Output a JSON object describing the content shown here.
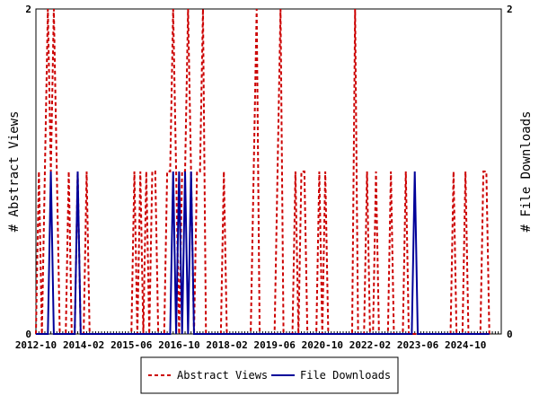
{
  "chart_data": {
    "type": "line",
    "title": "",
    "xlabel": "",
    "ylabel_left": "# Abstract Views",
    "ylabel_right": "# File Downloads",
    "ylim_left": [
      0,
      2
    ],
    "ylim_right": [
      0,
      2
    ],
    "y_ticks_left": [
      "0",
      "2"
    ],
    "y_ticks_right": [
      "0",
      "2"
    ],
    "x_range": [
      "2012-10",
      "2025-10"
    ],
    "x_ticks": [
      "2012-10",
      "2014-02",
      "2015-06",
      "2016-10",
      "2018-02",
      "2019-06",
      "2020-10",
      "2022-02",
      "2023-06",
      "2024-10"
    ],
    "grid": false,
    "legend_position": "bottom",
    "series": [
      {
        "name": "Abstract Views",
        "color": "#cc0000",
        "style": "dashed",
        "axis": "left",
        "points": [
          [
            "2012-10",
            0
          ],
          [
            "2012-11",
            1
          ],
          [
            "2012-12",
            0
          ],
          [
            "2013-01",
            1
          ],
          [
            "2013-02",
            2
          ],
          [
            "2013-03",
            1
          ],
          [
            "2013-04",
            2
          ],
          [
            "2013-05",
            1
          ],
          [
            "2013-06",
            0
          ],
          [
            "2013-07",
            0
          ],
          [
            "2013-08",
            0
          ],
          [
            "2013-09",
            1
          ],
          [
            "2013-10",
            0
          ],
          [
            "2013-11",
            0
          ],
          [
            "2013-12",
            1
          ],
          [
            "2014-01",
            0
          ],
          [
            "2014-02",
            0
          ],
          [
            "2014-03",
            1
          ],
          [
            "2014-04",
            0
          ],
          [
            "2014-05",
            0
          ],
          [
            "2014-06",
            0
          ],
          [
            "2014-07",
            0
          ],
          [
            "2014-08",
            0
          ],
          [
            "2014-09",
            0
          ],
          [
            "2014-10",
            0
          ],
          [
            "2014-11",
            0
          ],
          [
            "2014-12",
            0
          ],
          [
            "2015-01",
            0
          ],
          [
            "2015-02",
            0
          ],
          [
            "2015-03",
            0
          ],
          [
            "2015-04",
            0
          ],
          [
            "2015-05",
            0
          ],
          [
            "2015-06",
            0
          ],
          [
            "2015-07",
            1
          ],
          [
            "2015-08",
            0
          ],
          [
            "2015-09",
            1
          ],
          [
            "2015-10",
            0
          ],
          [
            "2015-11",
            1
          ],
          [
            "2015-12",
            0
          ],
          [
            "2016-01",
            1
          ],
          [
            "2016-02",
            1
          ],
          [
            "2016-03",
            0
          ],
          [
            "2016-04",
            0
          ],
          [
            "2016-05",
            0
          ],
          [
            "2016-06",
            1
          ],
          [
            "2016-07",
            1
          ],
          [
            "2016-08",
            2
          ],
          [
            "2016-09",
            1
          ],
          [
            "2016-10",
            0
          ],
          [
            "2016-11",
            1
          ],
          [
            "2016-12",
            1
          ],
          [
            "2017-01",
            2
          ],
          [
            "2017-02",
            1
          ],
          [
            "2017-03",
            0
          ],
          [
            "2017-04",
            1
          ],
          [
            "2017-05",
            1
          ],
          [
            "2017-06",
            2
          ],
          [
            "2017-07",
            0
          ],
          [
            "2017-08",
            0
          ],
          [
            "2017-09",
            0
          ],
          [
            "2017-10",
            0
          ],
          [
            "2017-11",
            0
          ],
          [
            "2017-12",
            0
          ],
          [
            "2018-01",
            1
          ],
          [
            "2018-02",
            0
          ],
          [
            "2018-03",
            0
          ],
          [
            "2018-04",
            0
          ],
          [
            "2018-05",
            0
          ],
          [
            "2018-06",
            0
          ],
          [
            "2018-07",
            0
          ],
          [
            "2018-08",
            0
          ],
          [
            "2018-09",
            0
          ],
          [
            "2018-10",
            0
          ],
          [
            "2018-11",
            1
          ],
          [
            "2018-12",
            2
          ],
          [
            "2019-01",
            0
          ],
          [
            "2019-02",
            0
          ],
          [
            "2019-03",
            0
          ],
          [
            "2019-04",
            0
          ],
          [
            "2019-05",
            0
          ],
          [
            "2019-06",
            0
          ],
          [
            "2019-07",
            1
          ],
          [
            "2019-08",
            2
          ],
          [
            "2019-09",
            0
          ],
          [
            "2019-10",
            0
          ],
          [
            "2019-11",
            0
          ],
          [
            "2019-12",
            0
          ],
          [
            "2020-01",
            1
          ],
          [
            "2020-02",
            0
          ],
          [
            "2020-03",
            1
          ],
          [
            "2020-04",
            1
          ],
          [
            "2020-05",
            0
          ],
          [
            "2020-06",
            0
          ],
          [
            "2020-07",
            0
          ],
          [
            "2020-08",
            0
          ],
          [
            "2020-09",
            1
          ],
          [
            "2020-10",
            0
          ],
          [
            "2020-11",
            1
          ],
          [
            "2020-12",
            0
          ],
          [
            "2021-01",
            0
          ],
          [
            "2021-02",
            0
          ],
          [
            "2021-03",
            0
          ],
          [
            "2021-04",
            0
          ],
          [
            "2021-05",
            0
          ],
          [
            "2021-06",
            0
          ],
          [
            "2021-07",
            0
          ],
          [
            "2021-08",
            0
          ],
          [
            "2021-09",
            2
          ],
          [
            "2021-10",
            0
          ],
          [
            "2021-11",
            0
          ],
          [
            "2021-12",
            0
          ],
          [
            "2022-01",
            1
          ],
          [
            "2022-02",
            0
          ],
          [
            "2022-03",
            0
          ],
          [
            "2022-04",
            1
          ],
          [
            "2022-05",
            0
          ],
          [
            "2022-06",
            0
          ],
          [
            "2022-07",
            0
          ],
          [
            "2022-08",
            0
          ],
          [
            "2022-09",
            1
          ],
          [
            "2022-10",
            0
          ],
          [
            "2022-11",
            0
          ],
          [
            "2022-12",
            0
          ],
          [
            "2023-01",
            0
          ],
          [
            "2023-02",
            1
          ],
          [
            "2023-03",
            0
          ],
          [
            "2023-04",
            0
          ],
          [
            "2023-05",
            0
          ],
          [
            "2023-06",
            0
          ],
          [
            "2023-07",
            0
          ],
          [
            "2023-08",
            0
          ],
          [
            "2023-09",
            0
          ],
          [
            "2023-10",
            0
          ],
          [
            "2023-11",
            0
          ],
          [
            "2023-12",
            0
          ],
          [
            "2024-01",
            0
          ],
          [
            "2024-02",
            0
          ],
          [
            "2024-03",
            0
          ],
          [
            "2024-04",
            0
          ],
          [
            "2024-05",
            0
          ],
          [
            "2024-06",
            1
          ],
          [
            "2024-07",
            0
          ],
          [
            "2024-08",
            0
          ],
          [
            "2024-09",
            0
          ],
          [
            "2024-10",
            1
          ],
          [
            "2024-11",
            0
          ],
          [
            "2024-12",
            0
          ],
          [
            "2025-01",
            0
          ],
          [
            "2025-02",
            0
          ],
          [
            "2025-03",
            0
          ],
          [
            "2025-04",
            1
          ],
          [
            "2025-05",
            1
          ],
          [
            "2025-06",
            0
          ]
        ]
      },
      {
        "name": "File Downloads",
        "color": "#000099",
        "style": "solid",
        "axis": "right",
        "points": [
          [
            "2012-10",
            0
          ],
          [
            "2013-01",
            0
          ],
          [
            "2013-02",
            0
          ],
          [
            "2013-03",
            1
          ],
          [
            "2013-04",
            0
          ],
          [
            "2013-05",
            0
          ],
          [
            "2013-06",
            0
          ],
          [
            "2013-07",
            0
          ],
          [
            "2013-08",
            0
          ],
          [
            "2013-09",
            0
          ],
          [
            "2013-10",
            0
          ],
          [
            "2013-11",
            0
          ],
          [
            "2013-12",
            1
          ],
          [
            "2014-01",
            0
          ],
          [
            "2014-02",
            0
          ],
          [
            "2016-06",
            0
          ],
          [
            "2016-07",
            0
          ],
          [
            "2016-08",
            1
          ],
          [
            "2016-09",
            0
          ],
          [
            "2016-10",
            1
          ],
          [
            "2016-11",
            0
          ],
          [
            "2016-12",
            1
          ],
          [
            "2017-01",
            0
          ],
          [
            "2017-02",
            1
          ],
          [
            "2017-03",
            0
          ],
          [
            "2017-04",
            0
          ],
          [
            "2017-05",
            0
          ],
          [
            "2023-04",
            0
          ],
          [
            "2023-05",
            1
          ],
          [
            "2023-06",
            0
          ],
          [
            "2025-06",
            0
          ]
        ]
      }
    ]
  }
}
